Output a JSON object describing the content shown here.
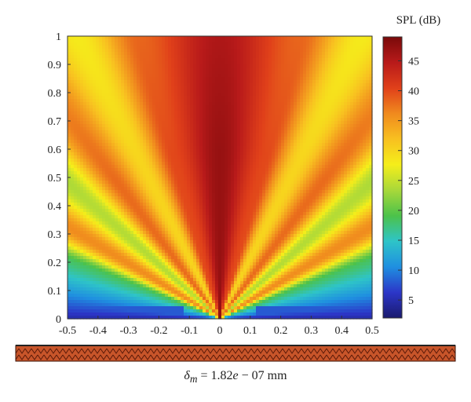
{
  "chart_data": {
    "type": "heatmap",
    "title": "",
    "xlabel": "",
    "ylabel": "",
    "xlim": [
      -0.5,
      0.5
    ],
    "ylim": [
      0,
      1
    ],
    "x_ticks": [
      "-0.5",
      "-0.4",
      "-0.3",
      "-0.2",
      "-0.1",
      "0",
      "0.1",
      "0.2",
      "0.3",
      "0.4",
      "0.5"
    ],
    "y_ticks": [
      "0",
      "0.1",
      "0.2",
      "0.3",
      "0.4",
      "0.5",
      "0.6",
      "0.7",
      "0.8",
      "0.9",
      "1"
    ],
    "colorbar": {
      "label": "SPL (dB)",
      "range": [
        2,
        49
      ],
      "ticks": [
        "5",
        "10",
        "15",
        "20",
        "25",
        "30",
        "35",
        "40",
        "45"
      ],
      "colormap": [
        "#1a1a6e",
        "#2c36c8",
        "#1f8fe0",
        "#2ec4c8",
        "#4cc24a",
        "#a8d83a",
        "#f5ee1a",
        "#f8c020",
        "#f08a1e",
        "#e0401a",
        "#b81a1a",
        "#7a0a0a"
      ]
    },
    "field_description": "acoustic beam pattern with central main lobe at x=0 and symmetric radial side lobes",
    "lobe_angles_deg": [
      0,
      15,
      25,
      35,
      46,
      57,
      68
    ],
    "lobe_levels_db": [
      47,
      40,
      30,
      38,
      24,
      36,
      18
    ],
    "transducer_strip": true
  },
  "caption": {
    "symbol": "δ",
    "subscript": "m",
    "text": " = 1.82",
    "exp_e": "e",
    "exp_rest": " − 07 mm"
  }
}
